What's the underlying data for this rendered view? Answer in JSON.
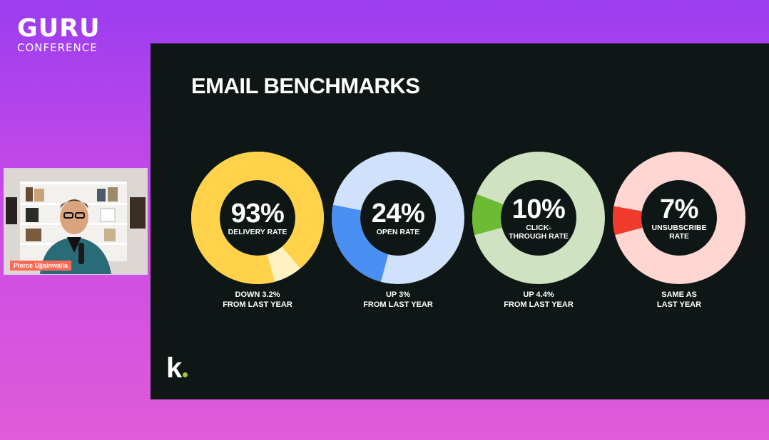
{
  "brand": {
    "title": "GURU",
    "subtitle": "CONFERENCE"
  },
  "webcam": {
    "speaker_name": "Pierce Ujjainwalla"
  },
  "slide": {
    "title": "EMAIL BENCHMARKS",
    "logo": "k",
    "metrics": [
      {
        "value": "93%",
        "label": "DELIVERY RATE",
        "note_line1": "DOWN 3.2%",
        "note_line2": "FROM LAST YEAR",
        "fill": 0.93,
        "color": "#ffd24a",
        "track": "#fff1c2",
        "start_deg": 165
      },
      {
        "value": "24%",
        "label": "OPEN RATE",
        "note_line1": "UP 3%",
        "note_line2": "FROM LAST YEAR",
        "fill": 0.24,
        "color": "#4a8ff2",
        "track": "#cfe1fb",
        "start_deg": 195
      },
      {
        "value": "10%",
        "label": "CLICK-THROUGH RATE",
        "note_line1": "UP 4.4%",
        "note_line2": "FROM LAST YEAR",
        "fill": 0.1,
        "color": "#6dbb33",
        "track": "#cfe3c2",
        "start_deg": 255
      },
      {
        "value": "7%",
        "label": "UNSUBSCRIBE RATE",
        "note_line1": "SAME AS",
        "note_line2": "LAST YEAR",
        "fill": 0.07,
        "color": "#f03b2a",
        "track": "#ffd6d2",
        "start_deg": 255
      }
    ]
  }
}
